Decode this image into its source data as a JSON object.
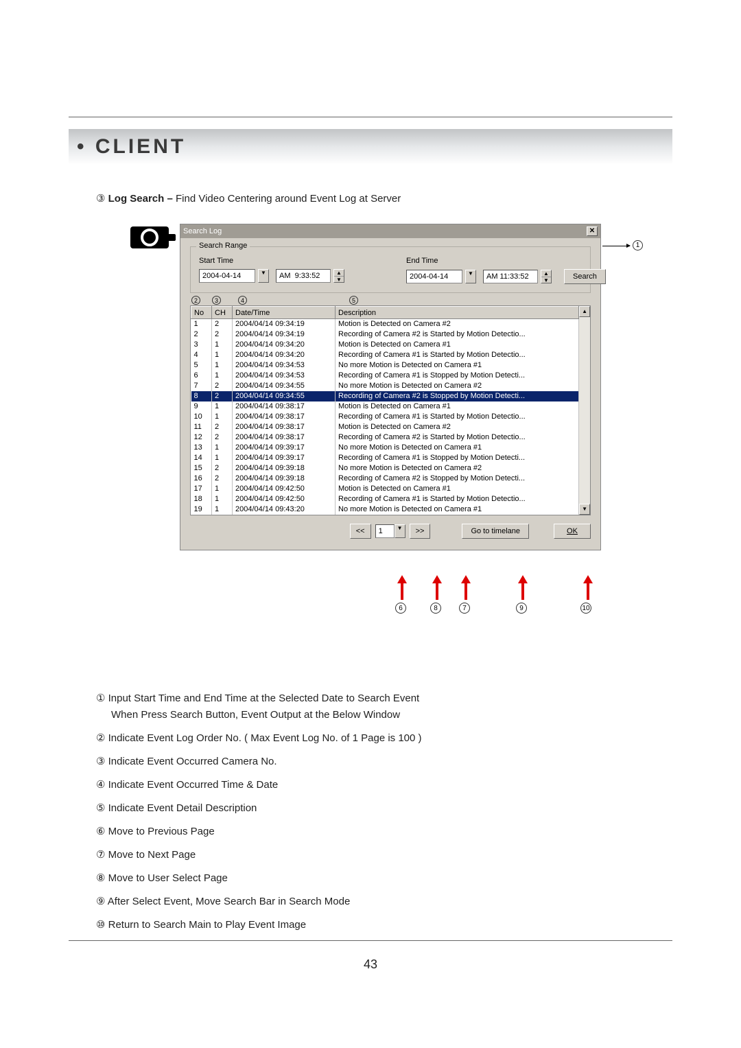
{
  "header": {
    "title": "CLIENT",
    "bullet": "•"
  },
  "subheading": {
    "num": "③",
    "bold": "Log Search –",
    "rest": " Find Video Centering around Event Log at Server"
  },
  "window": {
    "title": "Search Log",
    "fieldset_legend": "Search Range",
    "start_label": "Start Time",
    "end_label": "End Time",
    "start_date": "2004-04-14",
    "start_time": "AM  9:33:52",
    "end_date": "2004-04-14",
    "end_time": "AM 11:33:52",
    "search_btn": "Search",
    "col_markers": {
      "c2": "2",
      "c3": "3",
      "c4": "4",
      "c5": "5"
    },
    "headers": {
      "no": "No",
      "ch": "CH",
      "dt": "Date/Time",
      "desc": "Description"
    },
    "rows": [
      {
        "no": "1",
        "ch": "2",
        "dt": "2004/04/14 09:34:19",
        "desc": "Motion is Detected on Camera #2",
        "sel": false
      },
      {
        "no": "2",
        "ch": "2",
        "dt": "2004/04/14 09:34:19",
        "desc": "Recording of Camera #2 is Started by Motion Detectio...",
        "sel": false
      },
      {
        "no": "3",
        "ch": "1",
        "dt": "2004/04/14 09:34:20",
        "desc": "Motion is Detected on Camera #1",
        "sel": false
      },
      {
        "no": "4",
        "ch": "1",
        "dt": "2004/04/14 09:34:20",
        "desc": "Recording of Camera #1 is Started by Motion Detectio...",
        "sel": false
      },
      {
        "no": "5",
        "ch": "1",
        "dt": "2004/04/14 09:34:53",
        "desc": "No more Motion is Detected on Camera #1",
        "sel": false
      },
      {
        "no": "6",
        "ch": "1",
        "dt": "2004/04/14 09:34:53",
        "desc": "Recording of Camera #1 is Stopped by Motion Detecti...",
        "sel": false
      },
      {
        "no": "7",
        "ch": "2",
        "dt": "2004/04/14 09:34:55",
        "desc": "No more Motion is Detected on Camera #2",
        "sel": false
      },
      {
        "no": "8",
        "ch": "2",
        "dt": "2004/04/14 09:34:55",
        "desc": "Recording of Camera #2 is Stopped by Motion Detecti...",
        "sel": true
      },
      {
        "no": "9",
        "ch": "1",
        "dt": "2004/04/14 09:38:17",
        "desc": "Motion is Detected on Camera #1",
        "sel": false
      },
      {
        "no": "10",
        "ch": "1",
        "dt": "2004/04/14 09:38:17",
        "desc": "Recording of Camera #1 is Started by Motion Detectio...",
        "sel": false
      },
      {
        "no": "11",
        "ch": "2",
        "dt": "2004/04/14 09:38:17",
        "desc": "Motion is Detected on Camera #2",
        "sel": false
      },
      {
        "no": "12",
        "ch": "2",
        "dt": "2004/04/14 09:38:17",
        "desc": "Recording of Camera #2 is Started by Motion Detectio...",
        "sel": false
      },
      {
        "no": "13",
        "ch": "1",
        "dt": "2004/04/14 09:39:17",
        "desc": "No more Motion is Detected on Camera #1",
        "sel": false
      },
      {
        "no": "14",
        "ch": "1",
        "dt": "2004/04/14 09:39:17",
        "desc": "Recording of Camera #1 is Stopped by Motion Detecti...",
        "sel": false
      },
      {
        "no": "15",
        "ch": "2",
        "dt": "2004/04/14 09:39:18",
        "desc": "No more Motion is Detected on Camera #2",
        "sel": false
      },
      {
        "no": "16",
        "ch": "2",
        "dt": "2004/04/14 09:39:18",
        "desc": "Recording of Camera #2 is Stopped by Motion Detecti...",
        "sel": false
      },
      {
        "no": "17",
        "ch": "1",
        "dt": "2004/04/14 09:42:50",
        "desc": "Motion is Detected on Camera #1",
        "sel": false
      },
      {
        "no": "18",
        "ch": "1",
        "dt": "2004/04/14 09:42:50",
        "desc": "Recording of Camera #1 is Started by Motion Detectio...",
        "sel": false
      },
      {
        "no": "19",
        "ch": "1",
        "dt": "2004/04/14 09:43:20",
        "desc": "No more Motion is Detected on Camera #1",
        "sel": false
      }
    ],
    "footer": {
      "prev": "<<",
      "page": "1",
      "next": ">>",
      "goto": "Go to timelane",
      "ok": "OK"
    }
  },
  "callouts": {
    "right1": "1",
    "bottom": {
      "c6": "6",
      "c7": "7",
      "c8": "8",
      "c9": "9",
      "c10": "10"
    }
  },
  "notes": [
    {
      "n": "①",
      "t": "Input Start Time and End Time at the Selected Date to Search Event",
      "t2": "When Press Search Button, Event Output at the Below Window"
    },
    {
      "n": "②",
      "t": "Indicate Event Log Order No. ( Max Event Log No. of 1 Page is 100 )"
    },
    {
      "n": "③",
      "t": "Indicate Event Occurred Camera No."
    },
    {
      "n": "④",
      "t": "Indicate Event Occurred Time & Date"
    },
    {
      "n": "⑤",
      "t": "Indicate Event Detail Description"
    },
    {
      "n": "⑥",
      "t": "Move to Previous Page"
    },
    {
      "n": "⑦",
      "t": "Move to Next Page"
    },
    {
      "n": "⑧",
      "t": "Move to User Select Page"
    },
    {
      "n": "⑨",
      "t": "After Select Event, Move Search Bar in Search Mode"
    },
    {
      "n": "⑩",
      "t": "Return to Search Main to Play Event Image"
    }
  ],
  "page_number": "43"
}
